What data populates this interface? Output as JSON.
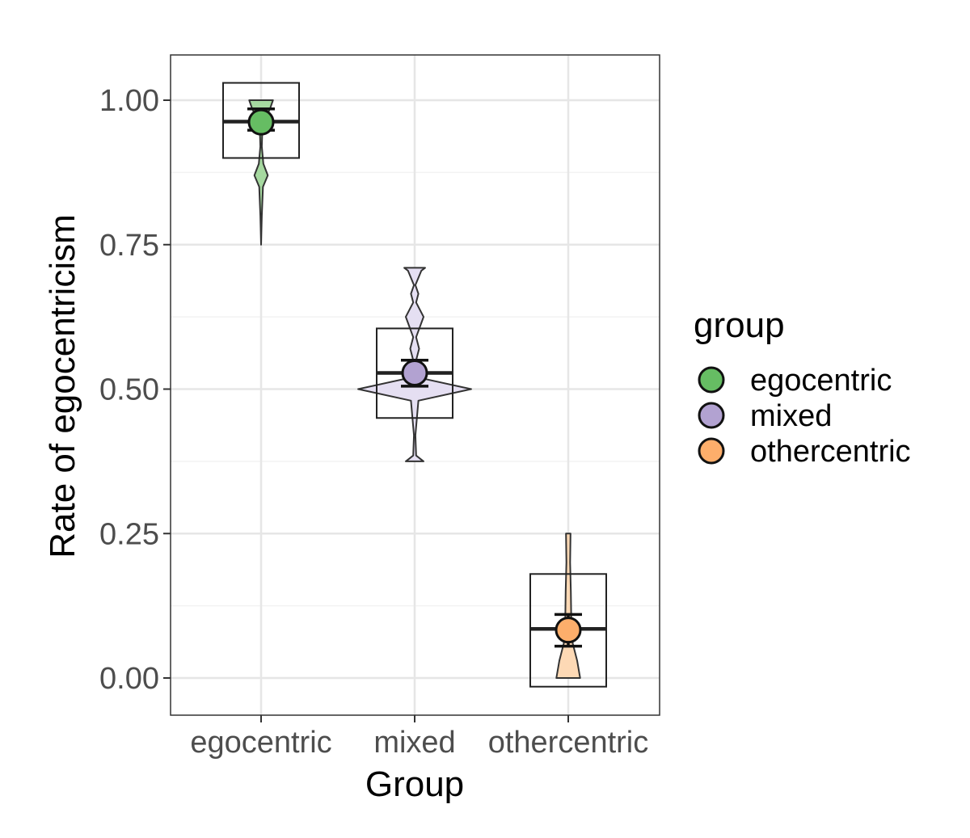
{
  "chart_data": {
    "type": "box-violin",
    "title": "",
    "xlabel": "Group",
    "ylabel": "Rate of egocentricism",
    "ylim": [
      -0.065,
      1.08
    ],
    "y_ticks": [
      0.0,
      0.25,
      0.5,
      0.75,
      1.0
    ],
    "y_tick_labels": [
      "0.00",
      "0.25",
      "0.50",
      "0.75",
      "1.00"
    ],
    "grid": true,
    "categories": [
      "egocentric",
      "mixed",
      "othercentric"
    ],
    "groups": [
      {
        "name": "egocentric",
        "color": "#66bd63",
        "violin_fill": "#a6d9a0",
        "box": {
          "lower": 0.9,
          "median": 0.963,
          "upper": 1.03
        },
        "mean": 0.962,
        "mean_ci": [
          0.948,
          0.985
        ],
        "violin": {
          "min": 0.75,
          "max": 1.0,
          "profile": [
            [
              0.75,
              0.0
            ],
            [
              0.8,
              0.01
            ],
            [
              0.85,
              0.025
            ],
            [
              0.87,
              0.09
            ],
            [
              0.89,
              0.03
            ],
            [
              0.92,
              0.01
            ],
            [
              0.96,
              0.02
            ],
            [
              0.985,
              0.12
            ],
            [
              1.0,
              0.16
            ]
          ]
        }
      },
      {
        "name": "mixed",
        "color": "#b2a2d1",
        "violin_fill": "#e5dff2",
        "box": {
          "lower": 0.45,
          "median": 0.528,
          "upper": 0.605
        },
        "mean": 0.528,
        "mean_ci": [
          0.505,
          0.55
        ],
        "violin": {
          "min": 0.375,
          "max": 0.71,
          "profile": [
            [
              0.375,
              0.12
            ],
            [
              0.385,
              0.02
            ],
            [
              0.42,
              0.01
            ],
            [
              0.48,
              0.05
            ],
            [
              0.5,
              0.76
            ],
            [
              0.52,
              0.05
            ],
            [
              0.55,
              0.02
            ],
            [
              0.57,
              0.06
            ],
            [
              0.59,
              0.02
            ],
            [
              0.625,
              0.12
            ],
            [
              0.65,
              0.02
            ],
            [
              0.665,
              0.05
            ],
            [
              0.68,
              0.01
            ],
            [
              0.705,
              0.09
            ],
            [
              0.71,
              0.14
            ]
          ]
        }
      },
      {
        "name": "othercentric",
        "color": "#fdae6b",
        "violin_fill": "#fdd9b5",
        "box": {
          "lower": -0.015,
          "median": 0.085,
          "upper": 0.18
        },
        "mean": 0.083,
        "mean_ci": [
          0.055,
          0.11
        ],
        "violin": {
          "min": 0.0,
          "max": 0.25,
          "profile": [
            [
              0.0,
              0.16
            ],
            [
              0.03,
              0.12
            ],
            [
              0.06,
              0.06
            ],
            [
              0.1,
              0.04
            ],
            [
              0.15,
              0.035
            ],
            [
              0.2,
              0.025
            ],
            [
              0.25,
              0.03
            ]
          ]
        }
      }
    ],
    "legend": {
      "title": "group",
      "position": "right",
      "entries": [
        "egocentric",
        "mixed",
        "othercentric"
      ]
    }
  }
}
